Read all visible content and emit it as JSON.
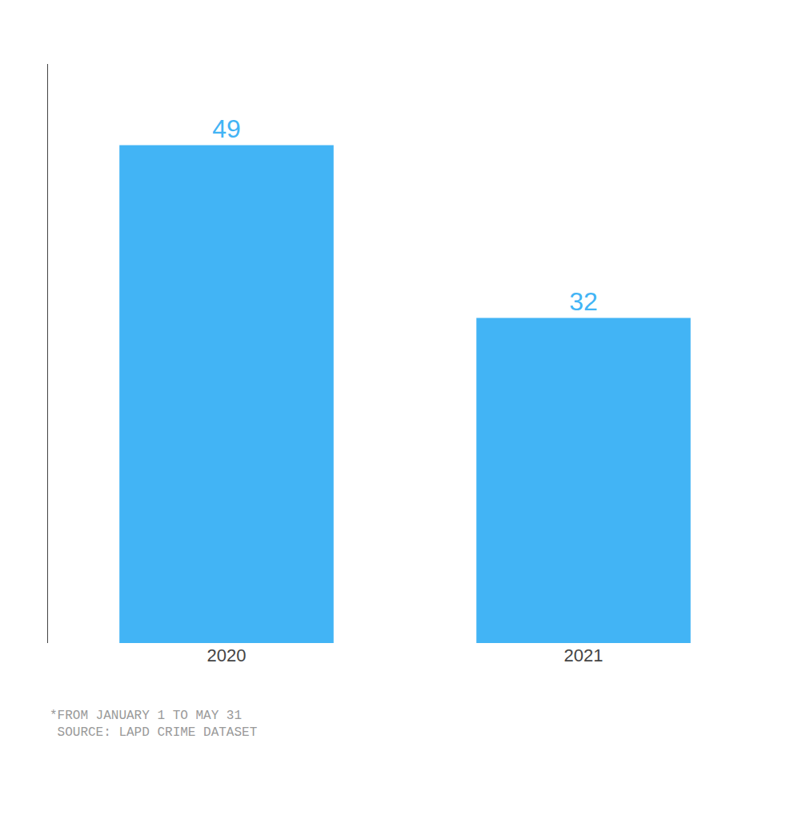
{
  "chart_data": {
    "type": "bar",
    "categories": [
      "2020",
      "2021"
    ],
    "values": [
      49,
      32
    ],
    "color": "#42B4F5",
    "ylim": [
      0,
      57
    ],
    "data_labels": true,
    "grid": false,
    "tick_labels": "x",
    "annotations": [
      "*FROM JANUARY 1 TO MAY 31",
      " SOURCE: LAPD CRIME DATASET"
    ]
  }
}
